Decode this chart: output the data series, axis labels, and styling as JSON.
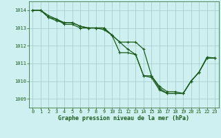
{
  "background_color": "#cff0f0",
  "grid_color": "#a0c8c8",
  "line_color": "#1a5c1a",
  "marker_color": "#1a5c1a",
  "xlabel": "Graphe pression niveau de la mer (hPa)",
  "xlabel_color": "#1a5c1a",
  "tick_color": "#1a5c1a",
  "ylim": [
    1008.5,
    1014.5
  ],
  "xlim": [
    -0.5,
    23.5
  ],
  "yticks": [
    1009,
    1010,
    1011,
    1012,
    1013,
    1014
  ],
  "xticks": [
    0,
    1,
    2,
    3,
    4,
    5,
    6,
    7,
    8,
    9,
    10,
    11,
    12,
    13,
    14,
    15,
    16,
    17,
    18,
    19,
    20,
    21,
    22,
    23
  ],
  "series1": [
    1014.0,
    1014.0,
    1013.7,
    1013.5,
    1013.2,
    1013.2,
    1013.0,
    1013.0,
    1013.0,
    1012.9,
    1012.6,
    1012.2,
    1011.8,
    1011.5,
    1010.3,
    1010.3,
    1009.6,
    1009.3,
    1009.3,
    1009.3,
    1010.0,
    1010.5,
    1011.3,
    1011.3
  ],
  "series2": [
    1014.0,
    1014.0,
    1013.6,
    1013.4,
    1013.3,
    1013.3,
    1013.1,
    1013.0,
    1013.0,
    1013.0,
    1012.6,
    1012.2,
    1012.2,
    1012.2,
    1011.8,
    1010.3,
    1009.7,
    1009.4,
    1009.4,
    1009.3,
    1010.0,
    1010.5,
    1011.35,
    1011.3
  ],
  "series3": [
    1014.0,
    1014.0,
    1013.6,
    1013.5,
    1013.3,
    1013.3,
    1013.1,
    1013.0,
    1013.0,
    1013.0,
    1012.6,
    1011.6,
    1011.6,
    1011.5,
    1010.3,
    1010.2,
    1009.5,
    1009.3,
    1009.3,
    1009.3,
    1010.0,
    1010.5,
    1011.3,
    1011.3
  ]
}
